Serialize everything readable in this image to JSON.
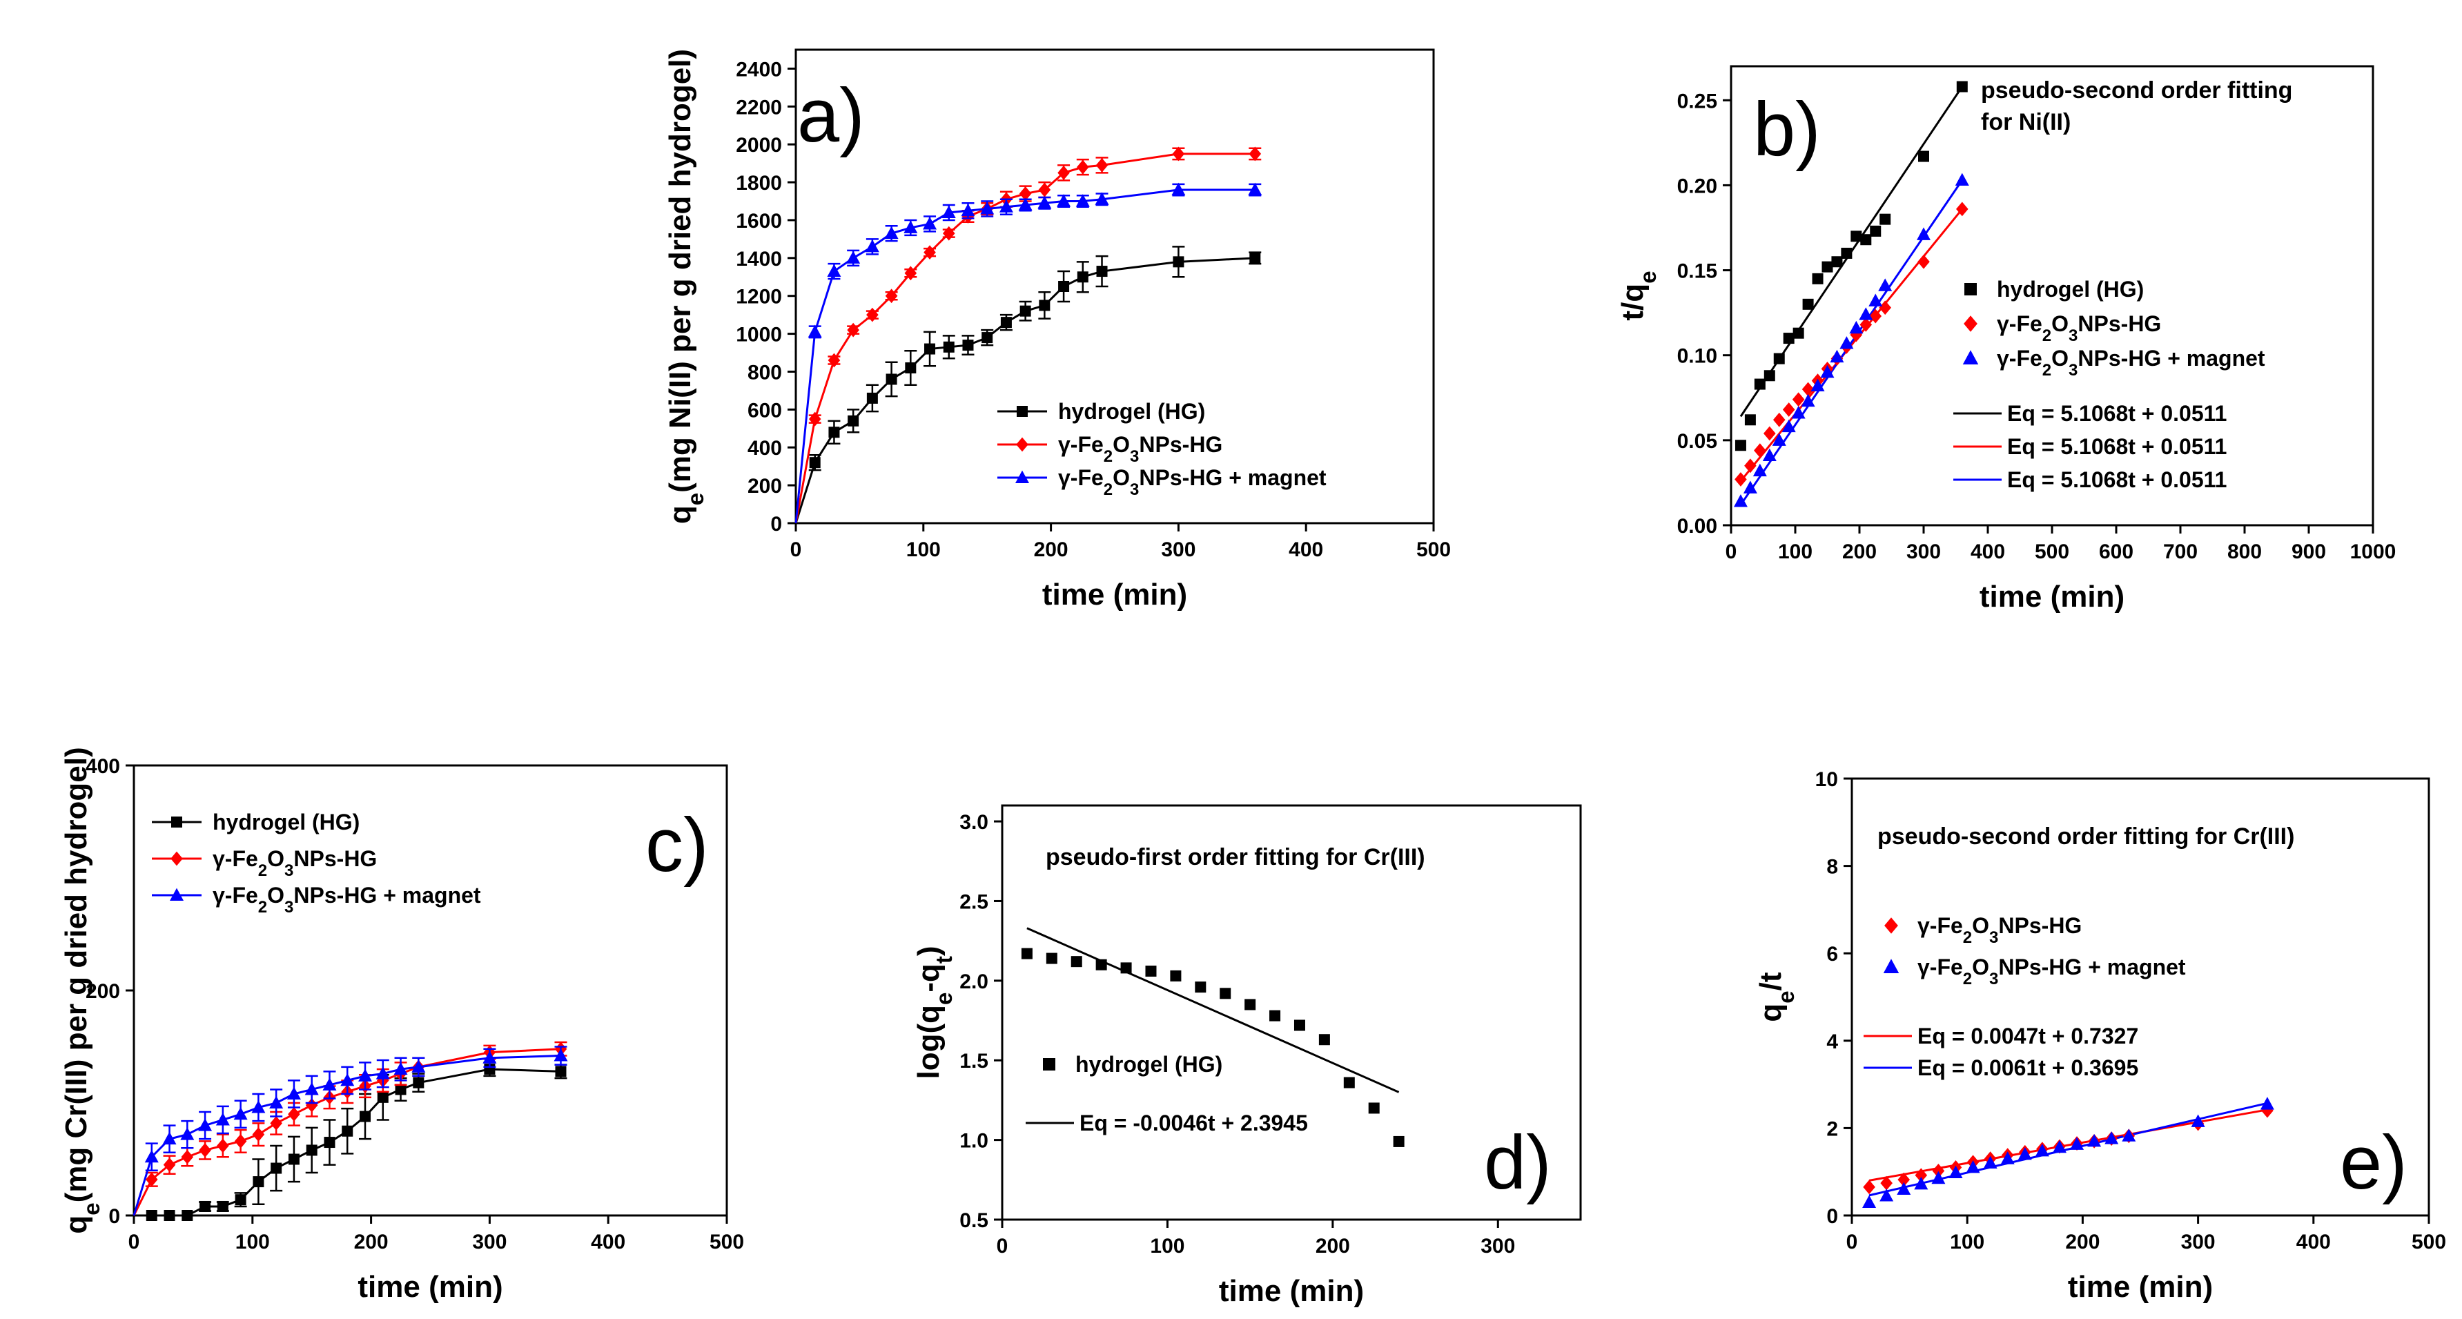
{
  "chart_data": [
    {
      "id": "a",
      "type": "line",
      "panel_label": "a)",
      "xlabel": "time (min)",
      "ylabel": "q_e(mg Ni(II) per g dried hydrogel)",
      "xlim": [
        0,
        500
      ],
      "ylim": [
        0,
        2500
      ],
      "xticks": [
        0,
        100,
        200,
        300,
        400,
        500
      ],
      "yticks": [
        0,
        200,
        400,
        600,
        800,
        1000,
        1200,
        1400,
        1600,
        1800,
        2000,
        2200,
        2400
      ],
      "grid": false,
      "legend_position": "lower-right",
      "series": [
        {
          "name": "hydrogel (HG)",
          "color": "#000000",
          "marker": "square",
          "x": [
            0,
            15,
            30,
            45,
            60,
            75,
            90,
            105,
            120,
            135,
            150,
            165,
            180,
            195,
            210,
            225,
            240,
            300,
            360
          ],
          "y": [
            0,
            320,
            480,
            540,
            660,
            760,
            820,
            920,
            930,
            940,
            980,
            1060,
            1120,
            1150,
            1250,
            1300,
            1330,
            1380,
            1400
          ],
          "err": [
            0,
            40,
            60,
            60,
            70,
            90,
            90,
            90,
            60,
            50,
            40,
            40,
            50,
            70,
            80,
            80,
            80,
            80,
            30
          ]
        },
        {
          "name": "γ-Fe2O3NPs-HG",
          "color": "#ff0000",
          "marker": "diamond",
          "x": [
            0,
            15,
            30,
            45,
            60,
            75,
            90,
            105,
            120,
            135,
            150,
            165,
            180,
            195,
            210,
            225,
            240,
            300,
            360
          ],
          "y": [
            0,
            550,
            860,
            1020,
            1100,
            1200,
            1320,
            1430,
            1530,
            1620,
            1660,
            1710,
            1740,
            1760,
            1850,
            1880,
            1890,
            1950,
            1950
          ],
          "err": [
            0,
            20,
            20,
            20,
            20,
            20,
            20,
            20,
            20,
            30,
            30,
            40,
            40,
            40,
            40,
            40,
            40,
            30,
            30
          ]
        },
        {
          "name": "γ-Fe2O3NPs-HG + magnet",
          "color": "#0000ff",
          "marker": "triangle",
          "x": [
            0,
            15,
            30,
            45,
            60,
            75,
            90,
            105,
            120,
            135,
            150,
            165,
            180,
            195,
            210,
            225,
            240,
            300,
            360
          ],
          "y": [
            0,
            1010,
            1330,
            1400,
            1460,
            1530,
            1560,
            1580,
            1640,
            1650,
            1660,
            1670,
            1680,
            1690,
            1700,
            1700,
            1710,
            1760,
            1760
          ],
          "err": [
            0,
            30,
            40,
            40,
            40,
            40,
            40,
            40,
            40,
            40,
            40,
            40,
            30,
            30,
            30,
            30,
            30,
            30,
            30
          ]
        }
      ]
    },
    {
      "id": "b",
      "type": "scatter",
      "panel_label": "b)",
      "annotation": [
        "pseudo-second order fitting",
        "for Ni(II)"
      ],
      "xlabel": "time (min)",
      "ylabel": "t/q_e",
      "xlim": [
        0,
        1000
      ],
      "ylim": [
        0,
        0.27
      ],
      "xticks": [
        0,
        100,
        200,
        300,
        400,
        500,
        600,
        700,
        800,
        900,
        1000
      ],
      "yticks": [
        0.0,
        0.05,
        0.1,
        0.15,
        0.2,
        0.25
      ],
      "grid": false,
      "legend_position": "right",
      "series": [
        {
          "name": "hydrogel (HG)",
          "color": "#000000",
          "marker": "square",
          "x": [
            15,
            30,
            45,
            60,
            75,
            90,
            105,
            120,
            135,
            150,
            165,
            180,
            195,
            210,
            225,
            240,
            300,
            360
          ],
          "y": [
            0.047,
            0.062,
            0.083,
            0.088,
            0.098,
            0.11,
            0.113,
            0.13,
            0.145,
            0.152,
            0.155,
            0.16,
            0.17,
            0.168,
            0.173,
            0.18,
            0.217,
            0.258
          ]
        },
        {
          "name": "γ-Fe2O3NPs-HG",
          "color": "#ff0000",
          "marker": "diamond",
          "x": [
            15,
            30,
            45,
            60,
            75,
            90,
            105,
            120,
            135,
            150,
            165,
            180,
            195,
            210,
            225,
            240,
            300,
            360
          ],
          "y": [
            0.027,
            0.035,
            0.044,
            0.054,
            0.062,
            0.068,
            0.074,
            0.08,
            0.085,
            0.092,
            0.098,
            0.105,
            0.112,
            0.118,
            0.123,
            0.128,
            0.155,
            0.186
          ]
        },
        {
          "name": "γ-Fe2O3NPs-HG + magnet",
          "color": "#0000ff",
          "marker": "triangle",
          "x": [
            15,
            30,
            45,
            60,
            75,
            90,
            105,
            120,
            135,
            150,
            165,
            180,
            195,
            210,
            225,
            240,
            300,
            360
          ],
          "y": [
            0.014,
            0.022,
            0.032,
            0.041,
            0.05,
            0.058,
            0.066,
            0.073,
            0.082,
            0.09,
            0.099,
            0.107,
            0.116,
            0.124,
            0.132,
            0.141,
            0.171,
            0.203
          ]
        }
      ],
      "fits": [
        {
          "label": "Eq = 5.1068t + 0.0511",
          "color": "#000000",
          "x": [
            15,
            360
          ],
          "y": [
            0.064,
            0.258
          ]
        },
        {
          "label": "Eq = 5.1068t + 0.0511",
          "color": "#ff0000",
          "x": [
            15,
            360
          ],
          "y": [
            0.026,
            0.186
          ]
        },
        {
          "label": "Eq = 5.1068t + 0.0511",
          "color": "#0000ff",
          "x": [
            15,
            360
          ],
          "y": [
            0.012,
            0.203
          ]
        }
      ]
    },
    {
      "id": "c",
      "type": "line",
      "panel_label": "c)",
      "xlabel": "time (min)",
      "ylabel": "q_e(mg Cr(III) per g dried hydrogel)",
      "xlim": [
        0,
        500
      ],
      "ylim": [
        0,
        400
      ],
      "xticks": [
        0,
        100,
        200,
        300,
        400,
        500
      ],
      "yticks": [
        0,
        200,
        400
      ],
      "grid": false,
      "legend_position": "upper-left",
      "series": [
        {
          "name": "hydrogel (HG)",
          "color": "#000000",
          "marker": "square",
          "x": [
            0,
            15,
            30,
            45,
            60,
            75,
            90,
            105,
            120,
            135,
            150,
            165,
            180,
            195,
            210,
            225,
            240,
            300,
            360
          ],
          "y": [
            0,
            0,
            0,
            0,
            8,
            8,
            14,
            30,
            42,
            50,
            58,
            65,
            75,
            88,
            105,
            112,
            118,
            130,
            128
          ],
          "err": [
            0,
            0,
            0,
            0,
            4,
            4,
            6,
            20,
            20,
            20,
            20,
            20,
            20,
            20,
            20,
            10,
            8,
            6,
            6
          ]
        },
        {
          "name": "γ-Fe2O3NPs-HG",
          "color": "#ff0000",
          "marker": "diamond",
          "x": [
            0,
            15,
            30,
            45,
            60,
            75,
            90,
            105,
            120,
            135,
            150,
            165,
            180,
            195,
            210,
            225,
            240,
            300,
            360
          ],
          "y": [
            0,
            32,
            45,
            52,
            58,
            62,
            66,
            72,
            82,
            90,
            98,
            105,
            110,
            115,
            120,
            126,
            132,
            145,
            148
          ],
          "err": [
            0,
            6,
            8,
            8,
            8,
            10,
            10,
            10,
            10,
            10,
            10,
            10,
            10,
            10,
            10,
            10,
            8,
            6,
            6
          ]
        },
        {
          "name": "γ-Fe2O3NPs-HG + magnet",
          "color": "#0000ff",
          "marker": "triangle",
          "x": [
            0,
            15,
            30,
            45,
            60,
            75,
            90,
            105,
            120,
            135,
            150,
            165,
            180,
            195,
            210,
            225,
            240,
            300,
            360
          ],
          "y": [
            0,
            52,
            68,
            72,
            80,
            85,
            90,
            96,
            100,
            108,
            112,
            116,
            120,
            124,
            126,
            130,
            132,
            140,
            142
          ],
          "err": [
            0,
            12,
            12,
            12,
            12,
            12,
            12,
            12,
            12,
            12,
            12,
            12,
            12,
            12,
            12,
            10,
            8,
            8,
            8
          ]
        }
      ]
    },
    {
      "id": "d",
      "type": "scatter",
      "panel_label": "d)",
      "annotation": [
        "pseudo-first order fitting for Cr(III)"
      ],
      "xlabel": "time (min)",
      "ylabel": "log(q_e-q_t)",
      "xlim": [
        0,
        350
      ],
      "ylim": [
        0.5,
        3.1
      ],
      "xticks": [
        0,
        100,
        200,
        300
      ],
      "yticks": [
        0.5,
        1.0,
        1.5,
        2.0,
        2.5,
        3.0
      ],
      "grid": false,
      "legend_position": "lower-left",
      "series": [
        {
          "name": "hydrogel (HG)",
          "color": "#000000",
          "marker": "square",
          "x": [
            15,
            30,
            45,
            60,
            75,
            90,
            105,
            120,
            135,
            150,
            165,
            180,
            195,
            210,
            225,
            240
          ],
          "y": [
            2.17,
            2.14,
            2.12,
            2.1,
            2.08,
            2.06,
            2.03,
            1.96,
            1.92,
            1.85,
            1.78,
            1.72,
            1.63,
            1.36,
            1.2,
            0.99
          ]
        }
      ],
      "fits": [
        {
          "label": "Eq = -0.0046t + 2.3945",
          "color": "#000000",
          "x": [
            15,
            240
          ],
          "y": [
            2.33,
            1.3
          ]
        }
      ]
    },
    {
      "id": "e",
      "type": "scatter",
      "panel_label": "e)",
      "annotation": [
        "pseudo-second order fitting for Cr(III)"
      ],
      "xlabel": "time (min)",
      "ylabel": "q_e/t",
      "xlim": [
        0,
        500
      ],
      "ylim": [
        0,
        10
      ],
      "xticks": [
        0,
        100,
        200,
        300,
        400,
        500
      ],
      "yticks": [
        0,
        2,
        4,
        6,
        8,
        10
      ],
      "grid": false,
      "legend_position": "left",
      "series": [
        {
          "name": "γ-Fe2O3NPs-HG",
          "color": "#ff0000",
          "marker": "diamond",
          "x": [
            15,
            30,
            45,
            60,
            75,
            90,
            105,
            120,
            135,
            150,
            165,
            180,
            195,
            210,
            225,
            240,
            300,
            360
          ],
          "y": [
            0.65,
            0.74,
            0.82,
            0.92,
            1.02,
            1.1,
            1.22,
            1.3,
            1.38,
            1.45,
            1.52,
            1.58,
            1.65,
            1.7,
            1.76,
            1.82,
            2.1,
            2.4
          ]
        },
        {
          "name": "γ-Fe2O3NPs-HG + magnet",
          "color": "#0000ff",
          "marker": "triangle",
          "x": [
            15,
            30,
            45,
            60,
            75,
            90,
            105,
            120,
            135,
            150,
            165,
            180,
            195,
            210,
            225,
            240,
            300,
            360
          ],
          "y": [
            0.3,
            0.45,
            0.6,
            0.72,
            0.85,
            0.98,
            1.1,
            1.2,
            1.3,
            1.4,
            1.48,
            1.56,
            1.63,
            1.7,
            1.76,
            1.82,
            2.15,
            2.55
          ]
        }
      ],
      "fits": [
        {
          "label": "Eq = 0.0047t + 0.7327",
          "color": "#ff0000",
          "x": [
            15,
            360
          ],
          "y": [
            0.8,
            2.42
          ]
        },
        {
          "label": "Eq = 0.0061t + 0.3695",
          "color": "#0000ff",
          "x": [
            15,
            360
          ],
          "y": [
            0.46,
            2.57
          ]
        }
      ]
    }
  ]
}
